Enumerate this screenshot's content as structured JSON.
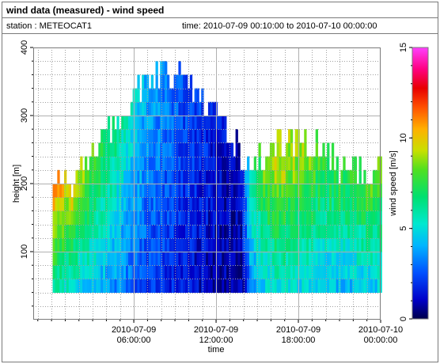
{
  "header": {
    "title": "wind data (measured) - wind speed",
    "station_label": "station : METEOCAT1",
    "time_label": "time: 2010-07-09 00:10:00 to 2010-07-10 00:00:00"
  },
  "chart_data": {
    "type": "heatmap",
    "title": "wind data (measured) - wind speed",
    "xlabel": "time",
    "ylabel": "height [m]",
    "colorbar_label": "wind speed [m/s]",
    "y_range": [
      0,
      400
    ],
    "y_ticks": [
      100,
      200,
      300,
      400
    ],
    "x_range": [
      "2010-07-08 22:40:00",
      "2010-07-10 00:00:00"
    ],
    "x_ticks": [
      {
        "line1": "2010-07-09",
        "line2": "06:00:00"
      },
      {
        "line1": "2010-07-09",
        "line2": "12:00:00"
      },
      {
        "line1": "2010-07-09",
        "line2": "18:00:00"
      },
      {
        "line1": "2010-07-10",
        "line2": "00:00:00"
      }
    ],
    "x_tick_hours": [
      6,
      12,
      18,
      24
    ],
    "colorbar_range": [
      0,
      15
    ],
    "colorbar_ticks": [
      0,
      5,
      10,
      15
    ],
    "grid": true,
    "data_start_hour": 0.1667,
    "data_end_hour": 24,
    "time_step_minutes": 10,
    "height_min": 40,
    "height_step": 20,
    "top_height_profile": [
      190,
      200,
      220,
      240,
      265,
      300,
      330,
      350,
      365,
      365,
      350,
      330,
      310,
      240,
      225,
      250,
      265,
      265,
      250,
      230,
      215,
      220
    ],
    "wind_speed_profile": [
      11,
      10,
      9,
      8,
      7,
      6,
      5,
      4,
      3.5,
      3,
      2.5,
      2,
      1.5,
      1,
      6,
      8.5,
      9.5,
      9,
      8,
      7.5,
      8,
      8.5
    ],
    "profile_hours": [
      0.17,
      1,
      2,
      3,
      4,
      5,
      6,
      7,
      8,
      9,
      10,
      11,
      12,
      13.8,
      14.5,
      15.5,
      16.5,
      18,
      19.5,
      21,
      22.5,
      24
    ]
  },
  "colors": {
    "background": "#ffffff",
    "grid": "#a0a0a0",
    "frame": "#7a7a7a"
  }
}
